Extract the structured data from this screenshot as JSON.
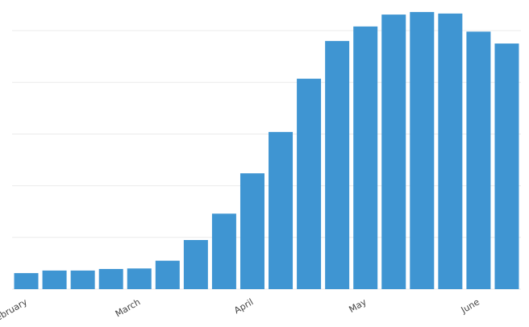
{
  "chart_data": {
    "type": "bar",
    "categories": [
      "February",
      null,
      null,
      null,
      "March",
      null,
      null,
      null,
      "April",
      null,
      null,
      null,
      "May",
      null,
      null,
      null,
      "June",
      null
    ],
    "values": [
      0.31,
      0.36,
      0.36,
      0.39,
      0.4,
      0.55,
      0.95,
      1.46,
      2.24,
      3.04,
      4.07,
      4.8,
      5.08,
      5.31,
      5.36,
      5.33,
      4.98,
      4.75
    ],
    "color": "#3f95d2",
    "ylim": [
      0,
      5.5
    ],
    "yticks": [
      0,
      1,
      2,
      3,
      4,
      5
    ],
    "grid": true
  }
}
